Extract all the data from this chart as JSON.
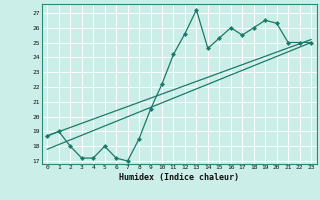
{
  "xlabel": "Humidex (Indice chaleur)",
  "bg_color": "#cceee8",
  "grid_color": "#ffffff",
  "line_color": "#1a7a6a",
  "xlim": [
    -0.5,
    23.5
  ],
  "ylim": [
    16.8,
    27.6
  ],
  "yticks": [
    17,
    18,
    19,
    20,
    21,
    22,
    23,
    24,
    25,
    26,
    27
  ],
  "xticks": [
    0,
    1,
    2,
    3,
    4,
    5,
    6,
    7,
    8,
    9,
    10,
    11,
    12,
    13,
    14,
    15,
    16,
    17,
    18,
    19,
    20,
    21,
    22,
    23
  ],
  "zigzag_x": [
    0,
    1,
    2,
    3,
    4,
    5,
    6,
    7,
    8,
    9,
    10,
    11,
    12,
    13,
    14,
    15,
    16,
    17,
    18,
    19,
    20,
    21,
    22,
    23
  ],
  "zigzag_y": [
    18.7,
    19.0,
    18.0,
    17.2,
    17.2,
    18.0,
    17.2,
    17.0,
    18.5,
    20.5,
    22.2,
    24.2,
    25.6,
    27.2,
    24.6,
    25.3,
    26.0,
    25.5,
    26.0,
    26.5,
    26.3,
    25.0,
    25.0,
    25.0
  ],
  "trend1_x": [
    0,
    23
  ],
  "trend1_y": [
    18.7,
    25.2
  ],
  "trend2_x": [
    0,
    23
  ],
  "trend2_y": [
    17.8,
    25.0
  ]
}
